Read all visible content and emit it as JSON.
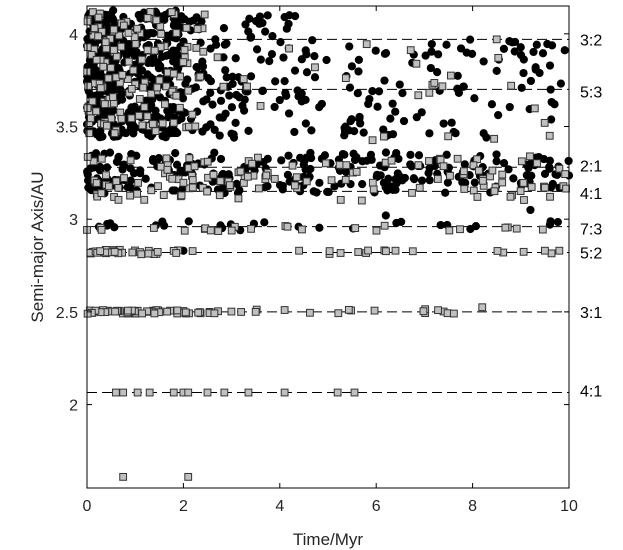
{
  "chart_data": {
    "type": "scatter",
    "xlabel": "Time/Myr",
    "ylabel": "Semi-major Axis/AU",
    "xlim": [
      0,
      10
    ],
    "ylim": [
      1.55,
      4.15
    ],
    "x_ticks": [
      {
        "value": 0,
        "label": "0"
      },
      {
        "value": 2,
        "label": "2"
      },
      {
        "value": 4,
        "label": "4"
      },
      {
        "value": 6,
        "label": "6"
      },
      {
        "value": 8,
        "label": "8"
      },
      {
        "value": 10,
        "label": "10"
      }
    ],
    "y_ticks": [
      {
        "value": 2,
        "label": "2"
      },
      {
        "value": 2.5,
        "label": "2.5"
      },
      {
        "value": 3,
        "label": "3"
      },
      {
        "value": 3.5,
        "label": "3.5"
      },
      {
        "value": 4,
        "label": "4"
      }
    ],
    "grid": false,
    "legend": "none",
    "colors": {
      "filled_marker": "#000000",
      "open_marker_fill": "#c0c0c0",
      "open_marker_edge": "#333333",
      "frame": "#000000"
    },
    "resonances": [
      {
        "label": "3:2",
        "a": 3.97,
        "label_a": 3.97
      },
      {
        "label": "5:3",
        "a": 3.7,
        "label_a": 3.69
      },
      {
        "label": "2:1",
        "a": 3.28,
        "label_a": 3.29
      },
      {
        "label": "4:1",
        "a": 3.15,
        "label_a": 3.14
      },
      {
        "label": "7:3",
        "a": 2.96,
        "label_a": 2.95
      },
      {
        "label": "5:2",
        "a": 2.82,
        "label_a": 2.82
      },
      {
        "label": "3:1",
        "a": 2.5,
        "label_a": 2.5
      },
      {
        "label": "4:1",
        "a": 2.065,
        "label_a": 2.075
      }
    ],
    "series": [
      {
        "marker": "filled-circle",
        "regions": [
          {
            "t0": 0.0,
            "t1": 2.0,
            "a0": 3.44,
            "a1": 4.13,
            "count": 420
          },
          {
            "t0": 2.0,
            "t1": 4.5,
            "a0": 3.44,
            "a1": 4.1,
            "count": 110
          },
          {
            "t0": 4.5,
            "t1": 10.0,
            "a0": 3.44,
            "a1": 3.97,
            "count": 110
          },
          {
            "t0": 0.0,
            "t1": 10.0,
            "a0": 3.14,
            "a1": 3.36,
            "count": 260
          },
          {
            "t0": 0.0,
            "t1": 10.0,
            "a0": 2.94,
            "a1": 2.99,
            "count": 26
          }
        ],
        "points": [
          {
            "t": 4.1,
            "a": 4.09
          },
          {
            "t": 4.2,
            "a": 4.1
          },
          {
            "t": 8.5,
            "a": 3.8
          },
          {
            "t": 9.7,
            "a": 3.62
          },
          {
            "t": 2.0,
            "a": 2.83
          },
          {
            "t": 9.2,
            "a": 3.05
          },
          {
            "t": 6.2,
            "a": 3.02
          },
          {
            "t": 9.8,
            "a": 3.17
          },
          {
            "t": 1.6,
            "a": 2.965
          }
        ]
      },
      {
        "marker": "open-square",
        "regions": [
          {
            "t0": 0.0,
            "t1": 2.5,
            "a0": 3.45,
            "a1": 4.12,
            "count": 140
          },
          {
            "t0": 2.0,
            "t1": 10.0,
            "a0": 3.4,
            "a1": 3.95,
            "count": 24
          },
          {
            "t0": 0.0,
            "t1": 10.0,
            "a0": 3.1,
            "a1": 3.34,
            "count": 130
          },
          {
            "t0": 0.0,
            "t1": 10.0,
            "a0": 2.935,
            "a1": 2.965,
            "count": 24
          },
          {
            "t0": 0.0,
            "t1": 2.0,
            "a0": 2.81,
            "a1": 2.835,
            "count": 30
          },
          {
            "t0": 2.0,
            "t1": 10.0,
            "a0": 2.81,
            "a1": 2.835,
            "count": 14
          },
          {
            "t0": 0.0,
            "t1": 3.0,
            "a0": 2.49,
            "a1": 2.51,
            "count": 55
          },
          {
            "t0": 3.0,
            "t1": 8.0,
            "a0": 2.49,
            "a1": 2.515,
            "count": 14
          }
        ],
        "points": [
          {
            "t": 8.2,
            "a": 2.525
          },
          {
            "t": 3.5,
            "a": 2.5
          },
          {
            "t": 4.1,
            "a": 2.51
          },
          {
            "t": 0.6,
            "a": 2.065
          },
          {
            "t": 0.75,
            "a": 2.065
          },
          {
            "t": 1.05,
            "a": 2.065
          },
          {
            "t": 1.3,
            "a": 2.065
          },
          {
            "t": 1.8,
            "a": 2.065
          },
          {
            "t": 2.0,
            "a": 2.065
          },
          {
            "t": 2.1,
            "a": 2.065
          },
          {
            "t": 2.5,
            "a": 2.065
          },
          {
            "t": 2.85,
            "a": 2.065
          },
          {
            "t": 3.35,
            "a": 2.065
          },
          {
            "t": 4.1,
            "a": 2.065
          },
          {
            "t": 5.2,
            "a": 2.065
          },
          {
            "t": 5.55,
            "a": 2.065
          },
          {
            "t": 0.75,
            "a": 1.61
          },
          {
            "t": 2.1,
            "a": 1.61
          },
          {
            "t": 8.1,
            "a": 3.12
          },
          {
            "t": 9.5,
            "a": 3.17
          },
          {
            "t": 9.8,
            "a": 2.83
          },
          {
            "t": 9.5,
            "a": 2.83
          },
          {
            "t": 6.4,
            "a": 2.83
          },
          {
            "t": 8.5,
            "a": 3.97
          },
          {
            "t": 8.8,
            "a": 3.72
          },
          {
            "t": 9.6,
            "a": 3.45
          },
          {
            "t": 4.4,
            "a": 2.83
          }
        ]
      }
    ]
  }
}
